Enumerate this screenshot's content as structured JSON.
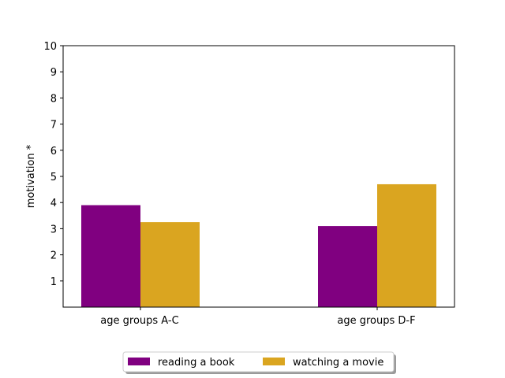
{
  "chart_data": {
    "type": "bar",
    "categories": [
      "age groups A-C",
      "age groups D-F"
    ],
    "series": [
      {
        "name": "reading a book",
        "values": [
          3.9,
          3.1
        ],
        "color": "#800080"
      },
      {
        "name": "watching a movie",
        "values": [
          3.25,
          4.7
        ],
        "color": "#DAA520"
      }
    ],
    "title": "",
    "xlabel": "",
    "ylabel": "motivation *",
    "ylim": [
      0,
      10
    ],
    "yticks": [
      1,
      2,
      3,
      4,
      5,
      6,
      7,
      8,
      9,
      10
    ],
    "grid": false,
    "legend": {
      "placement": "bottom-center",
      "columns": 2
    }
  }
}
